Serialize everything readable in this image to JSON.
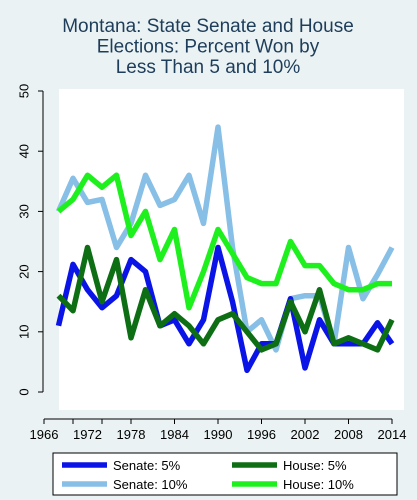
{
  "chart_data": {
    "type": "line",
    "title": [
      "Montana: State Senate and House",
      "Elections: Percent Won by",
      "Less Than 5 and 10%"
    ],
    "xlabel": "",
    "ylabel": "",
    "xlim": [
      1966,
      2014
    ],
    "ylim": [
      0,
      50
    ],
    "x_ticks": [
      1966,
      1970,
      1974,
      1978,
      1984,
      1990,
      1996,
      2002,
      2008,
      2014
    ],
    "x_tick_labels": [
      "1966",
      "1972",
      "1978",
      "1984",
      "1990",
      "1996",
      "2002",
      "2008",
      "2014"
    ],
    "x_tick_label_values": [
      1966,
      1972,
      1978,
      1984,
      1990,
      1996,
      2002,
      2008,
      2014
    ],
    "y_ticks": [
      0,
      10,
      20,
      30,
      40,
      50
    ],
    "y_tick_labels": [
      "0",
      "10",
      "20",
      "30",
      "40",
      "50"
    ],
    "grid": false,
    "legend_position": "bottom",
    "background_color": "#eaf2f3",
    "plot_background_color": "#ffffff",
    "series": [
      {
        "name": "Senate: 5%",
        "color": "#0a14e6",
        "x": [
          1968,
          1970,
          1972,
          1974,
          1976,
          1978,
          1980,
          1982,
          1984,
          1986,
          1988,
          1990,
          1992,
          1994,
          1996,
          1998,
          2000,
          2002,
          2004,
          2006,
          2008,
          2010,
          2012,
          2014
        ],
        "values": [
          11,
          21.2,
          17,
          14,
          16,
          22,
          20,
          11,
          12,
          8,
          12,
          24,
          15,
          3.6,
          8,
          8,
          15.5,
          4,
          12,
          8,
          8,
          8,
          11.5,
          8
        ]
      },
      {
        "name": "House: 5%",
        "color": "#0d6e14",
        "x": [
          1968,
          1970,
          1972,
          1974,
          1976,
          1978,
          1980,
          1982,
          1984,
          1986,
          1988,
          1990,
          1992,
          1994,
          1996,
          1998,
          2000,
          2002,
          2004,
          2006,
          2008,
          2010,
          2012,
          2014
        ],
        "values": [
          16,
          13.5,
          24,
          15,
          22,
          9,
          17,
          11,
          13,
          11,
          8,
          12,
          13,
          10,
          7,
          8,
          15,
          10,
          17,
          8,
          9,
          8,
          7,
          12
        ]
      },
      {
        "name": "Senate: 10%",
        "color": "#87bfe6",
        "x": [
          1968,
          1970,
          1972,
          1974,
          1976,
          1978,
          1980,
          1982,
          1984,
          1986,
          1988,
          1990,
          1992,
          1994,
          1996,
          1998,
          2000,
          2002,
          2004,
          2006,
          2008,
          2010,
          2012,
          2014
        ],
        "values": [
          30,
          35.5,
          31.5,
          32,
          24,
          28,
          36,
          31,
          32,
          36,
          28,
          44,
          24,
          10,
          12,
          7,
          15.5,
          16,
          16,
          8,
          24,
          15.5,
          19.5,
          24
        ]
      },
      {
        "name": "House: 10%",
        "color": "#1ef01e",
        "x": [
          1968,
          1970,
          1972,
          1974,
          1976,
          1978,
          1980,
          1982,
          1984,
          1986,
          1988,
          1990,
          1992,
          1994,
          1996,
          1998,
          2000,
          2002,
          2004,
          2006,
          2008,
          2010,
          2012,
          2014
        ],
        "values": [
          30,
          32,
          36,
          34,
          36,
          26,
          30,
          22,
          27,
          14,
          20,
          27,
          23,
          19,
          18,
          18,
          25,
          21,
          21,
          18,
          17,
          17,
          18,
          18
        ]
      }
    ],
    "draw_order": [
      2,
      3,
      0,
      1
    ],
    "legend_order": [
      0,
      1,
      2,
      3
    ]
  }
}
